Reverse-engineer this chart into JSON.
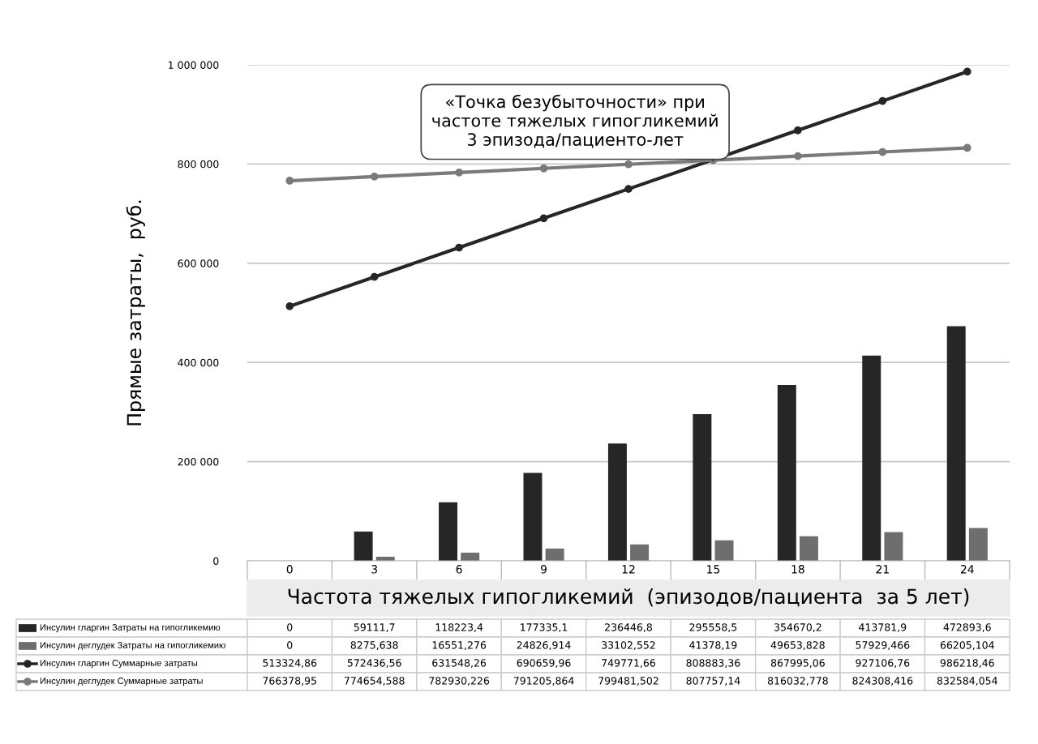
{
  "chart_data": {
    "type": "bar",
    "ylabel": "Прямые затраты,  руб.",
    "xlabel": "Частота тяжелых гипогликемий  (эпизодов/пациента  за 5 лет)",
    "categories": [
      "0",
      "3",
      "6",
      "9",
      "12",
      "15",
      "18",
      "21",
      "24"
    ],
    "series": [
      {
        "name": "Инсулин гларгин Затраты на гипогликемию",
        "color": "#262626",
        "values": [
          0,
          59111.7,
          118223.4,
          177335.1,
          236446.8,
          295558.5,
          354670.2,
          413781.9,
          472893.6
        ],
        "value_labels": [
          "0",
          "59111,7",
          "118223,4",
          "177335,1",
          "236446,8",
          "295558,5",
          "354670,2",
          "413781,9",
          "472893,6"
        ]
      },
      {
        "name": "Инсулин деглудек Затраты на гипогликемию",
        "color": "#6e6e6e",
        "values": [
          0,
          8275.638,
          16551.276,
          24826.914,
          33102.552,
          41378.19,
          49653.828,
          57929.466,
          66205.104
        ],
        "value_labels": [
          "0",
          "8275,638",
          "16551,276",
          "24826,914",
          "33102,552",
          "41378,19",
          "49653,828",
          "57929,466",
          "66205,104"
        ]
      },
      {
        "name": "Инсулин гларгин Суммарные затраты",
        "type": "line",
        "color": "#262626",
        "values": [
          513324.86,
          572436.56,
          631548.26,
          690659.96,
          749771.66,
          808883.36,
          867995.06,
          927106.76,
          986218.46
        ],
        "value_labels": [
          "513324,86",
          "572436,56",
          "631548,26",
          "690659,96",
          "749771,66",
          "808883,36",
          "867995,06",
          "927106,76",
          "986218,46"
        ]
      },
      {
        "name": "Инсулин деглудек Суммарные затраты",
        "type": "line",
        "color": "#7a7a7a",
        "values": [
          766378.95,
          774654.588,
          782930.226,
          791205.864,
          799481.502,
          807757.14,
          816032.778,
          824308.416,
          832584.054
        ],
        "value_labels": [
          "766378,95",
          "774654,588",
          "782930,226",
          "791205,864",
          "799481,502",
          "807757,14",
          "816032,778",
          "824308,416",
          "832584,054"
        ]
      }
    ],
    "ylim": [
      0,
      1000000
    ],
    "yticks": [
      0,
      {
        "value": 200000,
        "label": "200 000"
      },
      {
        "value": 400000,
        "label": "400 000"
      },
      {
        "value": 600000,
        "label": "600 000"
      },
      {
        "value": 800000,
        "label": "800 000"
      },
      {
        "value": 1000000,
        "label": "1 000 000"
      }
    ],
    "grid": "y",
    "marker": "circle",
    "line_style": "solid",
    "legend": "bottom",
    "annotations": [
      {
        "text": "«Точка безубыточности» при\nчастоте тяжелых гипогликемий\n3 эпизода/пациенто-лет",
        "x": "15",
        "y": 808000
      }
    ]
  }
}
